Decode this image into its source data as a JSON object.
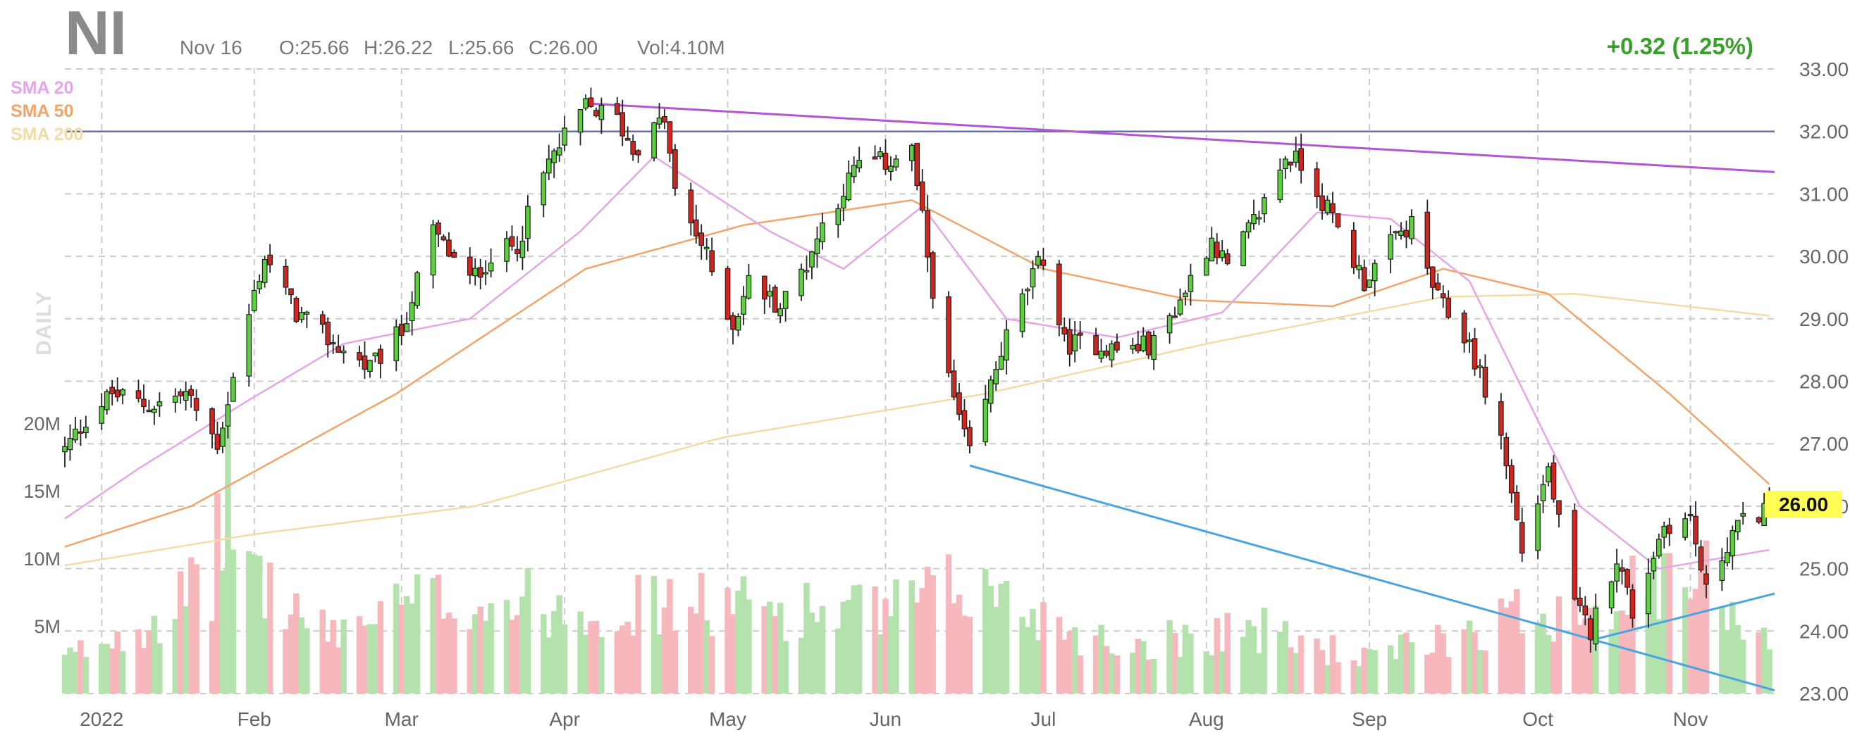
{
  "header": {
    "symbol": "NI",
    "date": "Nov 16",
    "open": "O:25.66",
    "high": "H:26.22",
    "low": "L:25.66",
    "close": "C:26.00",
    "volume": "Vol:4.10M",
    "change": "+0.32 (1.25%)",
    "watermark": "DAILY"
  },
  "legend": [
    {
      "label": "SMA 20",
      "color": "#e4a6e6"
    },
    {
      "label": "SMA 50",
      "color": "#f2a46a"
    },
    {
      "label": "SMA 200",
      "color": "#f3dba6"
    }
  ],
  "last_price_label": "26.00",
  "colors": {
    "up": "#5bd13d",
    "down": "#d1261f",
    "vol_up": "#b4e2ad",
    "vol_down": "#f6b8bc",
    "grid": "#cccccc",
    "trend_top": "#b455d4",
    "trend_bottom": "#4aa4e0",
    "horizontal": "#6a6ab8"
  },
  "chart_data": {
    "type": "candlestick",
    "price_axis": {
      "min": 23,
      "max": 33,
      "ticks": [
        "23.00",
        "24.00",
        "25.00",
        "26.00",
        "27.00",
        "28.00",
        "29.00",
        "30.00",
        "31.00",
        "32.00",
        "33.00"
      ]
    },
    "volume_axis": {
      "ticks": [
        "5M",
        "10M",
        "15M",
        "20M"
      ]
    },
    "x_ticks": [
      "2022",
      "Feb",
      "Mar",
      "Apr",
      "May",
      "Jun",
      "Jul",
      "Aug",
      "Sep",
      "Oct",
      "Nov"
    ],
    "horizontal_line": 32.0,
    "trendlines": [
      {
        "from": [
          "2022-04-05",
          32.45
        ],
        "to": [
          "2022-11-17",
          31.35
        ],
        "color": "#b455d4"
      },
      {
        "from": [
          "2022-06-17",
          26.65
        ],
        "to": [
          "2022-11-17",
          23.05
        ],
        "color": "#4aa4e0"
      },
      {
        "from": [
          "2022-10-13",
          23.85
        ],
        "to": [
          "2022-11-17",
          24.6
        ],
        "color": "#4aa4e0"
      }
    ],
    "closes_anchor": [
      [
        "2021-12-27",
        26.9
      ],
      [
        "2021-12-31",
        27.4
      ],
      [
        "2022-01-05",
        27.8
      ],
      [
        "2022-01-12",
        27.6
      ],
      [
        "2022-01-19",
        27.8
      ],
      [
        "2022-01-25",
        27.0
      ],
      [
        "2022-02-01",
        29.4
      ],
      [
        "2022-02-03",
        30.0
      ],
      [
        "2022-02-09",
        29.1
      ],
      [
        "2022-02-16",
        28.6
      ],
      [
        "2022-02-23",
        28.2
      ],
      [
        "2022-03-01",
        28.8
      ],
      [
        "2022-03-07",
        30.4
      ],
      [
        "2022-03-14",
        29.6
      ],
      [
        "2022-03-18",
        30.0
      ],
      [
        "2022-03-23",
        30.2
      ],
      [
        "2022-03-29",
        31.5
      ],
      [
        "2022-04-05",
        32.4
      ],
      [
        "2022-04-11",
        32.2
      ],
      [
        "2022-04-14",
        31.7
      ],
      [
        "2022-04-20",
        32.2
      ],
      [
        "2022-04-22",
        31.0
      ],
      [
        "2022-04-27",
        30.2
      ],
      [
        "2022-05-03",
        28.9
      ],
      [
        "2022-05-06",
        29.6
      ],
      [
        "2022-05-12",
        29.2
      ],
      [
        "2022-05-17",
        29.9
      ],
      [
        "2022-05-20",
        30.5
      ],
      [
        "2022-05-27",
        31.5
      ],
      [
        "2022-06-01",
        31.5
      ],
      [
        "2022-06-06",
        31.7
      ],
      [
        "2022-06-09",
        30.0
      ],
      [
        "2022-06-13",
        28.0
      ],
      [
        "2022-06-17",
        26.8
      ],
      [
        "2022-06-23",
        28.5
      ],
      [
        "2022-06-28",
        29.5
      ],
      [
        "2022-07-01",
        30.0
      ],
      [
        "2022-07-05",
        28.6
      ],
      [
        "2022-07-11",
        28.6
      ],
      [
        "2022-07-15",
        28.5
      ],
      [
        "2022-07-22",
        28.6
      ],
      [
        "2022-07-27",
        29.3
      ],
      [
        "2022-08-02",
        30.3
      ],
      [
        "2022-08-05",
        29.8
      ],
      [
        "2022-08-11",
        30.7
      ],
      [
        "2022-08-16",
        31.6
      ],
      [
        "2022-08-19",
        31.5
      ],
      [
        "2022-08-25",
        30.6
      ],
      [
        "2022-08-31",
        29.6
      ],
      [
        "2022-09-06",
        30.3
      ],
      [
        "2022-09-09",
        30.5
      ],
      [
        "2022-09-14",
        29.3
      ],
      [
        "2022-09-20",
        28.6
      ],
      [
        "2022-09-26",
        27.1
      ],
      [
        "2022-09-30",
        25.3
      ],
      [
        "2022-10-05",
        26.6
      ],
      [
        "2022-10-10",
        24.4
      ],
      [
        "2022-10-13",
        24.0
      ],
      [
        "2022-10-18",
        25.2
      ],
      [
        "2022-10-21",
        24.3
      ],
      [
        "2022-10-27",
        25.7
      ],
      [
        "2022-11-01",
        25.8
      ],
      [
        "2022-11-04",
        24.6
      ],
      [
        "2022-11-09",
        25.6
      ],
      [
        "2022-11-14",
        25.9
      ],
      [
        "2022-11-16",
        26.0
      ]
    ],
    "sma20_anchor": [
      [
        "2021-12-27",
        25.8
      ],
      [
        "2022-01-10",
        26.6
      ],
      [
        "2022-01-31",
        27.7
      ],
      [
        "2022-02-18",
        28.6
      ],
      [
        "2022-03-14",
        29.0
      ],
      [
        "2022-04-04",
        30.4
      ],
      [
        "2022-04-18",
        31.6
      ],
      [
        "2022-05-10",
        30.4
      ],
      [
        "2022-05-24",
        29.8
      ],
      [
        "2022-06-08",
        30.8
      ],
      [
        "2022-06-24",
        29.0
      ],
      [
        "2022-07-15",
        28.7
      ],
      [
        "2022-08-04",
        29.1
      ],
      [
        "2022-08-22",
        30.7
      ],
      [
        "2022-09-05",
        30.6
      ],
      [
        "2022-09-20",
        29.6
      ],
      [
        "2022-10-11",
        26.0
      ],
      [
        "2022-10-26",
        25.0
      ],
      [
        "2022-11-16",
        25.3
      ]
    ],
    "sma50_anchor": [
      [
        "2021-12-27",
        25.35
      ],
      [
        "2022-01-20",
        26.0
      ],
      [
        "2022-02-28",
        27.8
      ],
      [
        "2022-04-05",
        29.8
      ],
      [
        "2022-05-05",
        30.5
      ],
      [
        "2022-06-06",
        30.9
      ],
      [
        "2022-07-01",
        29.8
      ],
      [
        "2022-07-29",
        29.3
      ],
      [
        "2022-08-25",
        29.2
      ],
      [
        "2022-09-15",
        29.8
      ],
      [
        "2022-10-05",
        29.4
      ],
      [
        "2022-10-28",
        27.8
      ],
      [
        "2022-11-16",
        26.35
      ]
    ],
    "sma200_anchor": [
      [
        "2021-12-27",
        25.05
      ],
      [
        "2022-02-01",
        25.55
      ],
      [
        "2022-03-15",
        26.0
      ],
      [
        "2022-05-01",
        27.1
      ],
      [
        "2022-06-20",
        27.8
      ],
      [
        "2022-08-01",
        28.6
      ],
      [
        "2022-09-15",
        29.35
      ],
      [
        "2022-10-10",
        29.4
      ],
      [
        "2022-11-16",
        29.05
      ]
    ],
    "volume_anchor": [
      [
        "2021-12-27",
        2.5
      ],
      [
        "2022-01-24",
        8.0
      ],
      [
        "2022-01-26",
        15.0
      ],
      [
        "2022-02-03",
        8.0
      ],
      [
        "2022-02-14",
        4.5
      ],
      [
        "2022-03-07",
        7.0
      ],
      [
        "2022-04-05",
        6.5
      ],
      [
        "2022-05-03",
        6.5
      ],
      [
        "2022-06-01",
        6.0
      ],
      [
        "2022-06-17",
        8.0
      ],
      [
        "2022-07-15",
        3.5
      ],
      [
        "2022-08-08",
        5.0
      ],
      [
        "2022-09-01",
        2.5
      ],
      [
        "2022-09-26",
        5.5
      ],
      [
        "2022-10-13",
        7.0
      ],
      [
        "2022-11-04",
        8.5
      ],
      [
        "2022-11-16",
        4.1
      ]
    ]
  }
}
